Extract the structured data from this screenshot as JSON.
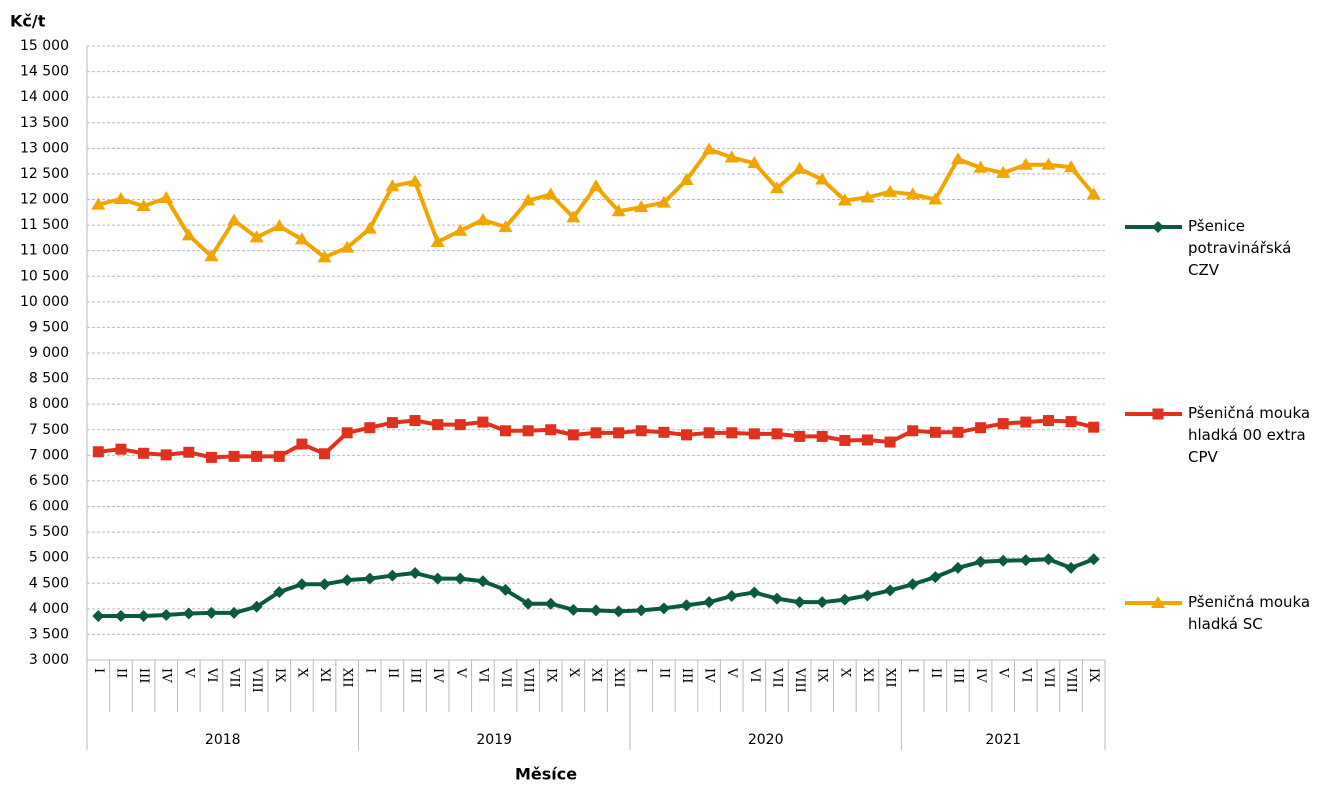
{
  "chart_data": {
    "type": "line",
    "y_label": "Kč/t",
    "x_label": "Měsíce",
    "categories": [
      "I",
      "II",
      "III",
      "IV",
      "V",
      "VI",
      "VII",
      "VIII",
      "IX",
      "X",
      "XI",
      "XII",
      "I",
      "II",
      "III",
      "IV",
      "V",
      "VI",
      "VII",
      "VIII",
      "IX",
      "X",
      "XI",
      "XII",
      "I",
      "II",
      "III",
      "IV",
      "V",
      "VI",
      "VII",
      "VIII",
      "IX",
      "X",
      "XI",
      "XII",
      "I",
      "II",
      "III",
      "IV",
      "V",
      "VI",
      "VII",
      "VIII",
      "IX"
    ],
    "years": [
      "2018",
      "2019",
      "2020",
      "2021"
    ],
    "series": [
      {
        "name": "Pšenice potravinářská CZV",
        "color": "#0b5a3b",
        "marker": "diamond",
        "values": [
          3860,
          3860,
          3860,
          3880,
          3910,
          3920,
          3920,
          4040,
          4330,
          4480,
          4480,
          4560,
          4590,
          4650,
          4700,
          4590,
          4590,
          4540,
          4370,
          4100,
          4100,
          3980,
          3970,
          3950,
          3970,
          4010,
          4070,
          4130,
          4250,
          4320,
          4200,
          4130,
          4130,
          4180,
          4260,
          4360,
          4480,
          4620,
          4800,
          4920,
          4940,
          4950,
          4970,
          4800,
          4970
        ]
      },
      {
        "name": "Pšeničná mouka hladká 00 extra CPV",
        "color": "#e0301e",
        "marker": "square",
        "values": [
          7070,
          7120,
          7040,
          7010,
          7060,
          6960,
          6980,
          6980,
          6980,
          7220,
          7030,
          7440,
          7540,
          7640,
          7680,
          7600,
          7600,
          7650,
          7480,
          7480,
          7500,
          7400,
          7440,
          7440,
          7480,
          7450,
          7400,
          7440,
          7440,
          7420,
          7420,
          7370,
          7370,
          7290,
          7300,
          7260,
          7480,
          7450,
          7450,
          7540,
          7620,
          7650,
          7680,
          7660,
          7550
        ]
      },
      {
        "name": "Pšeničná mouka hladká SC",
        "color": "#f0a500",
        "marker": "triangle",
        "values": [
          11900,
          12010,
          11870,
          12030,
          11300,
          10890,
          11590,
          11260,
          11480,
          11220,
          10870,
          11060,
          11430,
          12260,
          12350,
          11170,
          11390,
          11600,
          11460,
          11980,
          12100,
          11650,
          12260,
          11770,
          11850,
          11940,
          12380,
          12980,
          12820,
          12710,
          12220,
          12600,
          12390,
          11980,
          12040,
          12150,
          12100,
          12000,
          12790,
          12620,
          12520,
          12680,
          12680,
          12630,
          12100
        ]
      }
    ],
    "ylim": [
      3000,
      15000
    ],
    "yticks": [
      {
        "value": 3000,
        "label": "3 000"
      },
      {
        "value": 3500,
        "label": "3 500"
      },
      {
        "value": 4000,
        "label": "4 000"
      },
      {
        "value": 4500,
        "label": "4 500"
      },
      {
        "value": 5000,
        "label": "5 000"
      },
      {
        "value": 5500,
        "label": "5 500"
      },
      {
        "value": 6000,
        "label": "6 000"
      },
      {
        "value": 6500,
        "label": "6 500"
      },
      {
        "value": 7000,
        "label": "7 000"
      },
      {
        "value": 7500,
        "label": "7 500"
      },
      {
        "value": 8000,
        "label": "8 000"
      },
      {
        "value": 8500,
        "label": "8 500"
      },
      {
        "value": 9000,
        "label": "9 000"
      },
      {
        "value": 9500,
        "label": "9 500"
      },
      {
        "value": 10000,
        "label": "10 000"
      },
      {
        "value": 10500,
        "label": "10 500"
      },
      {
        "value": 11000,
        "label": "11 000"
      },
      {
        "value": 11500,
        "label": "11 500"
      },
      {
        "value": 12000,
        "label": "12 000"
      },
      {
        "value": 12500,
        "label": "12 500"
      },
      {
        "value": 13000,
        "label": "13 000"
      },
      {
        "value": 13500,
        "label": "13 500"
      },
      {
        "value": 14000,
        "label": "14 000"
      },
      {
        "value": 14500,
        "label": "14 500"
      },
      {
        "value": 15000,
        "label": "15 000"
      }
    ],
    "grid": true,
    "legend": "right"
  }
}
